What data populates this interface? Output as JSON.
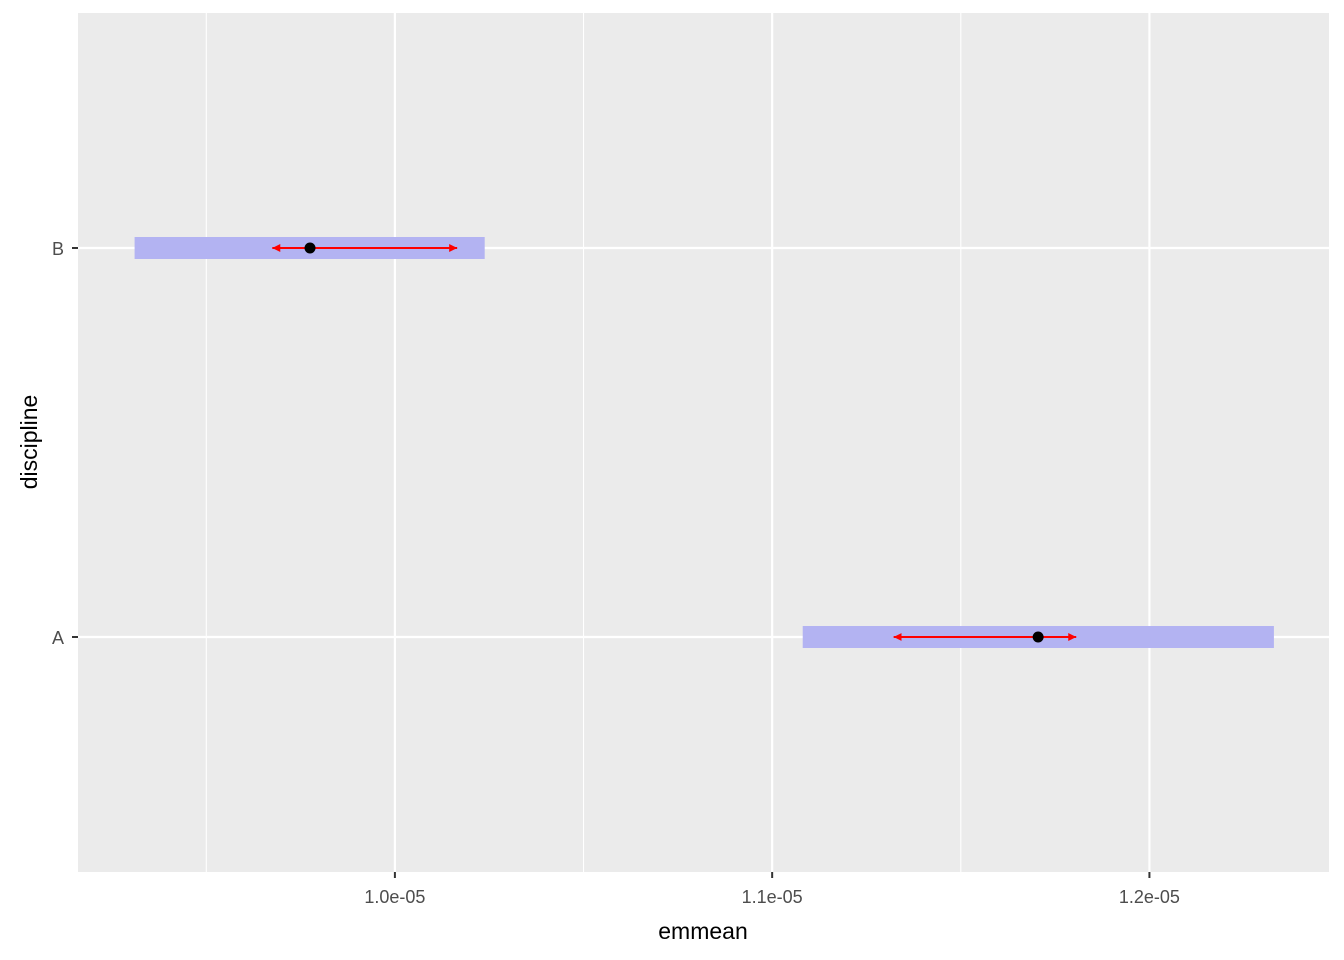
{
  "chart_data": {
    "type": "interval",
    "title": "",
    "xlabel": "emmean",
    "ylabel": "discipline",
    "xlim": [
      9.16e-06,
      1.2476e-05
    ],
    "categories": [
      "A",
      "B"
    ],
    "x_ticks": [
      {
        "value": 1e-05,
        "label": "1.0e-05"
      },
      {
        "value": 1.1e-05,
        "label": "1.1e-05"
      },
      {
        "value": 1.2e-05,
        "label": "1.2e-05"
      }
    ],
    "minor_x_ticks": [
      9.5e-06,
      1.05e-05,
      1.15e-05
    ],
    "grid": true,
    "series": [
      {
        "category": "A",
        "emmean": 1.1705e-05,
        "lower_CL": 1.1081e-05,
        "upper_CL": 1.233e-05,
        "comparison_lower": 1.1322e-05,
        "comparison_upper": 1.1806e-05
      },
      {
        "category": "B",
        "emmean": 9.775e-06,
        "lower_CL": 9.31e-06,
        "upper_CL": 1.0238e-05,
        "comparison_lower": 9.675e-06,
        "comparison_upper": 1.0165e-05
      }
    ],
    "colors": {
      "panel": "#ebebeb",
      "grid": "#ffffff",
      "ci_bar": "#b3b3f2",
      "comparison_arrow": "#ff0000",
      "point": "#000000"
    }
  }
}
